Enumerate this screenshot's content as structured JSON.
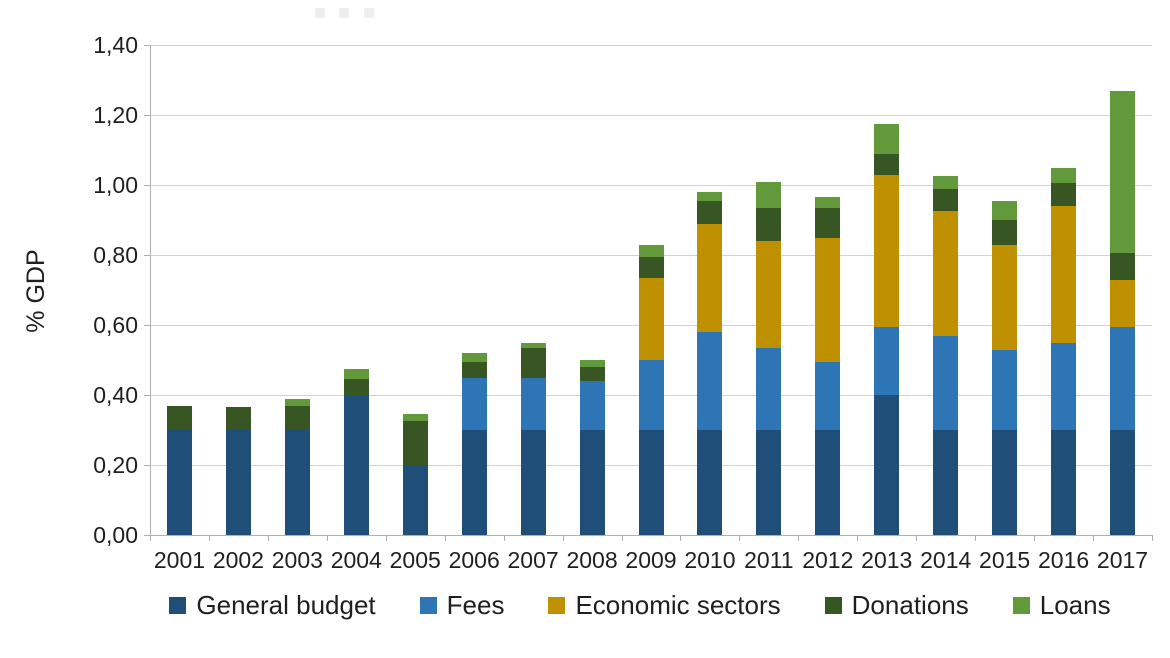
{
  "chart_data": {
    "type": "bar",
    "stacked": true,
    "title": "",
    "ylabel": "% GDP",
    "xlabel": "",
    "ylim": [
      0,
      1.4
    ],
    "ytick_step": 0.2,
    "ytick_labels": [
      "0,00",
      "0,20",
      "0,40",
      "0,60",
      "0,80",
      "1,00",
      "1,20",
      "1,40"
    ],
    "grid": true,
    "legend_position": "bottom",
    "categories": [
      "2001",
      "2002",
      "2003",
      "2004",
      "2005",
      "2006",
      "2007",
      "2008",
      "2009",
      "2010",
      "2011",
      "2012",
      "2013",
      "2014",
      "2015",
      "2016",
      "2017"
    ],
    "series": [
      {
        "name": "General budget",
        "color": "#1F4E79",
        "values": [
          0.3,
          0.3,
          0.3,
          0.4,
          0.2,
          0.3,
          0.3,
          0.3,
          0.3,
          0.3,
          0.3,
          0.3,
          0.4,
          0.3,
          0.3,
          0.3,
          0.3
        ]
      },
      {
        "name": "Fees",
        "color": "#2E75B6",
        "values": [
          0,
          0,
          0,
          0,
          0,
          0.15,
          0.15,
          0.14,
          0.2,
          0.28,
          0.235,
          0.195,
          0.195,
          0.27,
          0.23,
          0.25,
          0.295
        ]
      },
      {
        "name": "Economic sectors",
        "color": "#BF9000",
        "values": [
          0,
          0,
          0,
          0,
          0,
          0,
          0,
          0,
          0.235,
          0.31,
          0.305,
          0.355,
          0.435,
          0.355,
          0.3,
          0.39,
          0.135
        ]
      },
      {
        "name": "Donations",
        "color": "#375623",
        "values": [
          0.07,
          0.065,
          0.07,
          0.045,
          0.125,
          0.045,
          0.085,
          0.04,
          0.06,
          0.065,
          0.095,
          0.085,
          0.06,
          0.065,
          0.07,
          0.065,
          0.075
        ]
      },
      {
        "name": "Loans",
        "color": "#61993B",
        "values": [
          0,
          0,
          0.02,
          0.03,
          0.02,
          0.025,
          0.015,
          0.02,
          0.035,
          0.025,
          0.075,
          0.03,
          0.085,
          0.035,
          0.055,
          0.045,
          0.465
        ]
      }
    ]
  }
}
